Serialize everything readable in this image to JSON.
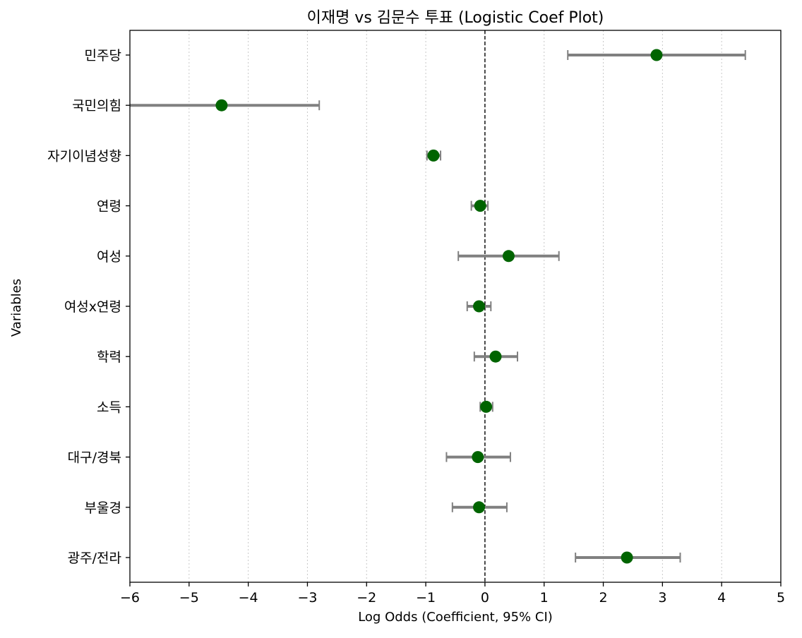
{
  "chart_data": {
    "type": "scatter",
    "subtype": "coefficient-errorbar",
    "title": "이재명 vs 김문수 투표 (Logistic Coef Plot)",
    "xlabel": "Log Odds (Coefficient, 95% CI)",
    "ylabel": "Variables",
    "xlim": [
      -6,
      5
    ],
    "xticks": [
      -6,
      -5,
      -4,
      -3,
      -2,
      -1,
      0,
      1,
      2,
      3,
      4,
      5
    ],
    "xtick_labels": [
      "−6",
      "−5",
      "−4",
      "−3",
      "−2",
      "−1",
      "0",
      "1",
      "2",
      "3",
      "4",
      "5"
    ],
    "grid": "vertical dotted",
    "reference_line": 0,
    "point_color": "#006400",
    "errorbar_color": "#808080",
    "categories": [
      "민주당",
      "국민의힘",
      "자기이념성향",
      "연령",
      "여성",
      "여성x연령",
      "학력",
      "소득",
      "대구/경북",
      "부울경",
      "광주/전라"
    ],
    "values": [
      2.9,
      -4.45,
      -0.87,
      -0.08,
      0.4,
      -0.1,
      0.18,
      0.02,
      -0.12,
      -0.1,
      2.4
    ],
    "ci_low": [
      1.4,
      -6.0,
      -0.98,
      -0.23,
      -0.45,
      -0.3,
      -0.18,
      -0.08,
      -0.65,
      -0.55,
      1.53
    ],
    "ci_high": [
      4.4,
      -2.8,
      -0.75,
      0.05,
      1.25,
      0.1,
      0.55,
      0.13,
      0.43,
      0.37,
      3.3
    ]
  }
}
